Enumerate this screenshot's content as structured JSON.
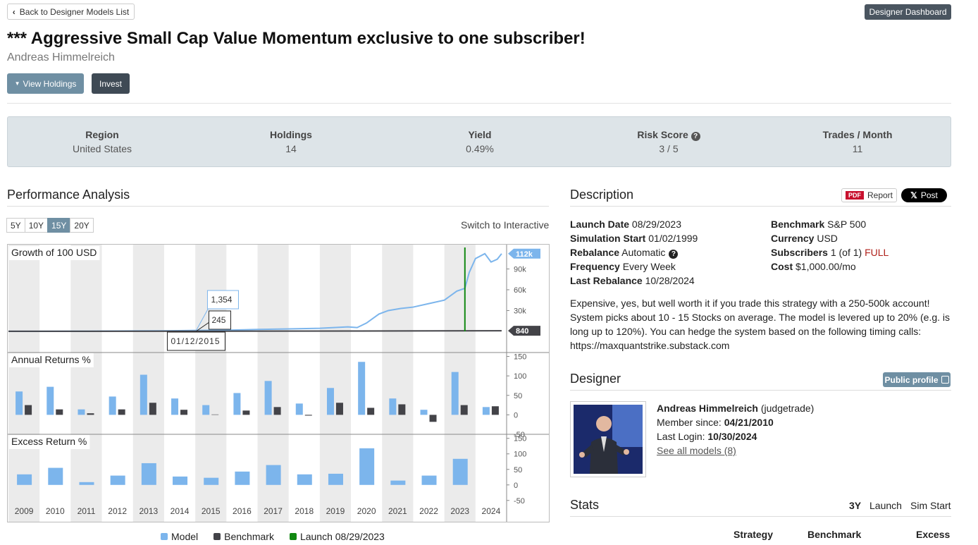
{
  "nav": {
    "back": "Back to Designer Models List",
    "dashboard": "Designer Dashboard"
  },
  "header": {
    "title": "*** Aggressive Small Cap Value Momentum exclusive to one subscriber!",
    "author": "Andreas Himmelreich",
    "view_holdings": "View Holdings",
    "invest": "Invest"
  },
  "summary": [
    {
      "label": "Region",
      "value": "United States"
    },
    {
      "label": "Holdings",
      "value": "14"
    },
    {
      "label": "Yield",
      "value": "0.49%"
    },
    {
      "label": "Risk Score",
      "value": "3 / 5"
    },
    {
      "label": "Trades / Month",
      "value": "11"
    }
  ],
  "performance": {
    "title": "Performance Analysis",
    "ranges": [
      "5Y",
      "10Y",
      "15Y",
      "20Y"
    ],
    "active_range": 2,
    "switch": "Switch to Interactive"
  },
  "chart_data": [
    {
      "type": "line",
      "title": "Growth of 100 USD",
      "xlim": [
        2009,
        2025
      ],
      "ylim": [
        0,
        124000
      ],
      "yticks": [
        {
          "value": 30000,
          "label": "30k"
        },
        {
          "value": 60000,
          "label": "60k"
        },
        {
          "value": 90000,
          "label": "90k"
        }
      ],
      "grid": false,
      "series": [
        {
          "name": "Model",
          "color": "#7cb5ec",
          "end_label": "112k",
          "x": [
            2009.0,
            2010.0,
            2011.0,
            2012.0,
            2013.0,
            2014.0,
            2015.03,
            2016.0,
            2017.0,
            2018.0,
            2019.0,
            2019.9,
            2020.2,
            2020.5,
            2020.9,
            2021.2,
            2021.6,
            2022.0,
            2022.5,
            2023.0,
            2023.4,
            2023.66,
            2023.8,
            2024.0,
            2024.3,
            2024.5,
            2024.7,
            2024.84
          ],
          "values": [
            100,
            180,
            220,
            320,
            600,
            800,
            1354,
            1700,
            2800,
            3500,
            4500,
            6500,
            5500,
            12000,
            25000,
            30000,
            33000,
            35000,
            40000,
            45000,
            58000,
            62000,
            85000,
            105000,
            112000,
            100000,
            104000,
            112000
          ]
        },
        {
          "name": "Benchmark",
          "color": "#434348",
          "x": [
            2009.0,
            2015.03,
            2020.0,
            2024.84
          ],
          "values": [
            100,
            245,
            500,
            840
          ]
        }
      ],
      "launch": {
        "x": 2023.66,
        "label": "Launch 08/29/2023",
        "color": "#118811"
      },
      "tooltip": {
        "x": 2015.03,
        "date": "01/12/2015",
        "model": {
          "value": 1354,
          "label": "1,354"
        },
        "benchmark": 245
      }
    },
    {
      "type": "bar",
      "title": "Annual Returns %",
      "ylim": [
        -50,
        160
      ],
      "yticks": [
        -50,
        0,
        50,
        100,
        150
      ],
      "grid": false,
      "series": [
        {
          "name": "Model",
          "color": "#7cb5ec",
          "values": [
            60,
            72,
            14,
            47,
            103,
            42,
            25,
            56,
            87,
            29,
            69,
            136,
            42,
            13,
            110,
            20
          ]
        },
        {
          "name": "Benchmark",
          "color": "#434348",
          "values": [
            25,
            14,
            4,
            14,
            31,
            13,
            1,
            11,
            20,
            -2,
            31,
            18,
            27,
            -18,
            25,
            22
          ]
        }
      ]
    },
    {
      "type": "bar",
      "title": "Excess Return %",
      "ylim": [
        -55,
        163
      ],
      "yticks": [
        -50,
        0,
        50,
        100,
        150
      ],
      "grid": false,
      "color": "#7cb5ec",
      "categories": [
        "2009",
        "2010",
        "2011",
        "2012",
        "2013",
        "2014",
        "2015",
        "2016",
        "2017",
        "2018",
        "2019",
        "2020",
        "2021",
        "2022",
        "2023",
        "2024"
      ],
      "values": [
        34,
        55,
        9,
        30,
        70,
        27,
        23,
        43,
        64,
        34,
        36,
        118,
        14,
        30,
        84,
        null
      ]
    }
  ],
  "description": {
    "title": "Description",
    "pdf": "PDF",
    "report": "Report",
    "post": "Post",
    "left": [
      {
        "label": "Launch Date",
        "value": "08/29/2023"
      },
      {
        "label": "Simulation Start",
        "value": "01/02/1999"
      },
      {
        "label": "Rebalance",
        "value": "Automatic"
      },
      {
        "label": "Frequency",
        "value": "Every Week"
      },
      {
        "label": "Last Rebalance",
        "value": "10/28/2024"
      }
    ],
    "right": [
      {
        "label": "Benchmark",
        "value": "S&P 500"
      },
      {
        "label": "Currency",
        "value": "USD"
      },
      {
        "label": "Subscribers",
        "value": "1 (of 1)",
        "status": "FULL"
      },
      {
        "label": "Cost",
        "value": "$1,000.00/mo"
      }
    ],
    "text": "Expensive, yes, but well worth it if you trade this strategy with a 250-500k account! System picks about 10 - 15 Stocks on average. The model is levered up to 20% (e.g. is long up to 120%). You can hedge the system based on the following timing calls: https://maxquantstrike.substack.com"
  },
  "designer": {
    "title": "Designer",
    "public_profile": "Public profile",
    "name": "Andreas Himmelreich",
    "handle": "(judgetrade)",
    "member_since_label": "Member since:",
    "member_since": "04/21/2010",
    "last_login_label": "Last Login:",
    "last_login": "10/30/2024",
    "see_all": "See all models (8)"
  },
  "stats": {
    "title": "Stats",
    "periods": [
      "3Y",
      "Launch",
      "Sim Start"
    ],
    "columns": [
      "Strategy",
      "Benchmark",
      "Excess"
    ]
  }
}
